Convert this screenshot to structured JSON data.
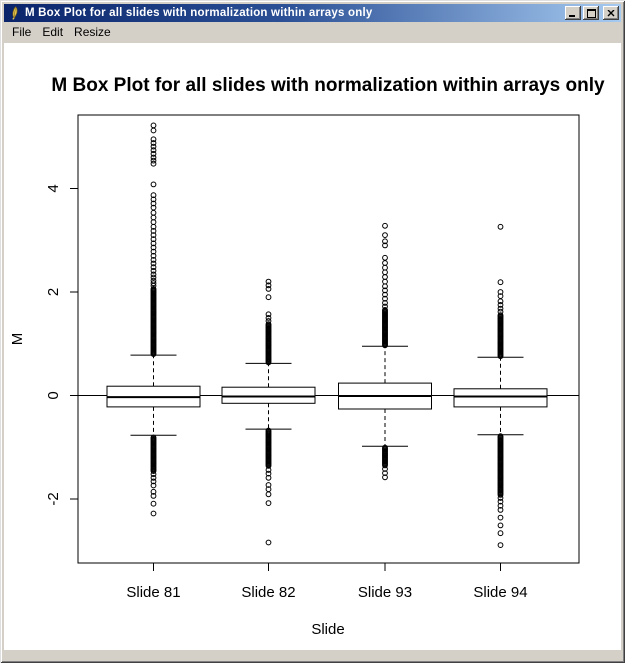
{
  "window": {
    "title": "M Box Plot for all slides with normalization within arrays only",
    "controls": [
      "minimize",
      "maximize",
      "close"
    ]
  },
  "icons": {
    "app": "feather-icon",
    "minimize": "minimize-icon",
    "maximize": "maximize-icon",
    "close": "close-icon"
  },
  "menu": {
    "items": [
      "File",
      "Edit",
      "Resize"
    ]
  },
  "colors": {
    "titlebar_gradient_left": "#0A246A",
    "titlebar_gradient_right": "#A6CAF0",
    "titlebar_text": "#FFFFFF",
    "chrome_face": "#D4D0C8",
    "plot_background": "#FFFFFF",
    "plot_foreground": "#000000"
  },
  "chart_data": {
    "type": "boxplot",
    "title": "M Box Plot for all slides with normalization within arrays only",
    "xlabel": "Slide",
    "ylabel": "M",
    "categories": [
      "Slide 81",
      "Slide 82",
      "Slide 93",
      "Slide 94"
    ],
    "yticks": [
      -2,
      0,
      2,
      4
    ],
    "ylim": [
      -3.24,
      5.42
    ],
    "reference_line_y": 0,
    "grid": false,
    "legend": null,
    "series": [
      {
        "name": "Slide 81",
        "median": -0.03,
        "q1": -0.22,
        "q3": 0.18,
        "whisker_low": -0.77,
        "whisker_high": 0.78,
        "outliers_high_dense": [
          0.8,
          2.06
        ],
        "outliers_high": [
          2.12,
          2.17,
          2.22,
          2.28,
          2.34,
          2.41,
          2.48,
          2.55,
          2.62,
          2.7,
          2.78,
          2.86,
          2.94,
          3.02,
          3.1,
          3.18,
          3.26,
          3.35,
          3.44,
          3.53,
          3.63,
          3.71,
          3.79,
          3.87,
          4.08,
          4.48,
          4.54,
          4.6,
          4.67,
          4.74,
          4.81,
          4.88,
          4.95,
          5.12,
          5.22
        ],
        "outliers_low_dense": [
          -1.46,
          -0.8
        ],
        "outliers_low": [
          -1.52,
          -1.59,
          -1.66,
          -1.74,
          -1.86,
          -1.94,
          -2.09,
          -2.28
        ]
      },
      {
        "name": "Slide 82",
        "median": -0.02,
        "q1": -0.15,
        "q3": 0.16,
        "whisker_low": -0.65,
        "whisker_high": 0.62,
        "outliers_high_dense": [
          0.64,
          1.38
        ],
        "outliers_high": [
          1.44,
          1.5,
          1.57,
          1.9,
          2.06,
          2.13,
          2.2
        ],
        "outliers_low_dense": [
          -1.36,
          -0.67
        ],
        "outliers_low": [
          -1.44,
          -1.51,
          -1.59,
          -1.73,
          -1.81,
          -1.91,
          -2.08,
          -2.84
        ]
      },
      {
        "name": "Slide 93",
        "median": -0.01,
        "q1": -0.26,
        "q3": 0.24,
        "whisker_low": -0.98,
        "whisker_high": 0.95,
        "outliers_high_dense": [
          0.97,
          1.66
        ],
        "outliers_high": [
          1.72,
          1.79,
          1.87,
          1.95,
          2.03,
          2.11,
          2.2,
          2.29,
          2.38,
          2.47,
          2.56,
          2.66,
          2.9,
          2.98,
          3.1,
          3.28
        ],
        "outliers_low_dense": [
          -1.35,
          -1.0
        ],
        "outliers_low": [
          -1.42,
          -1.5,
          -1.58
        ]
      },
      {
        "name": "Slide 94",
        "median": -0.02,
        "q1": -0.22,
        "q3": 0.13,
        "whisker_low": -0.76,
        "whisker_high": 0.74,
        "outliers_high_dense": [
          0.76,
          1.56
        ],
        "outliers_high": [
          1.62,
          1.68,
          1.75,
          1.82,
          1.92,
          2.0,
          2.19,
          3.26
        ],
        "outliers_low_dense": [
          -1.92,
          -0.78
        ],
        "outliers_low": [
          -1.98,
          -2.05,
          -2.13,
          -2.21,
          -2.36,
          -2.51,
          -2.66,
          -2.89
        ]
      }
    ]
  }
}
